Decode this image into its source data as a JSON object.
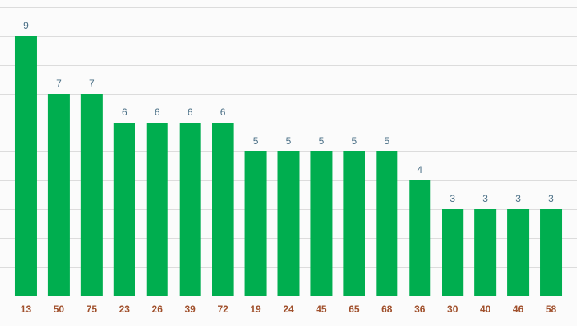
{
  "chart_data": {
    "type": "bar",
    "title": "",
    "xlabel": "",
    "ylabel": "",
    "ylim": [
      0,
      10
    ],
    "grid": true,
    "legend": "none",
    "categories": [
      "13",
      "50",
      "75",
      "23",
      "26",
      "39",
      "72",
      "19",
      "24",
      "45",
      "65",
      "68",
      "36",
      "30",
      "40",
      "46",
      "58"
    ],
    "values": [
      9,
      7,
      7,
      6,
      6,
      6,
      6,
      5,
      5,
      5,
      5,
      5,
      4,
      3,
      3,
      3,
      3
    ],
    "colors": {
      "bar": "#00ae4f",
      "value_label": "#4a6f86",
      "tick_label": "#a0502c",
      "grid": "#dcdcdc",
      "background": "#fbfbfb"
    }
  }
}
